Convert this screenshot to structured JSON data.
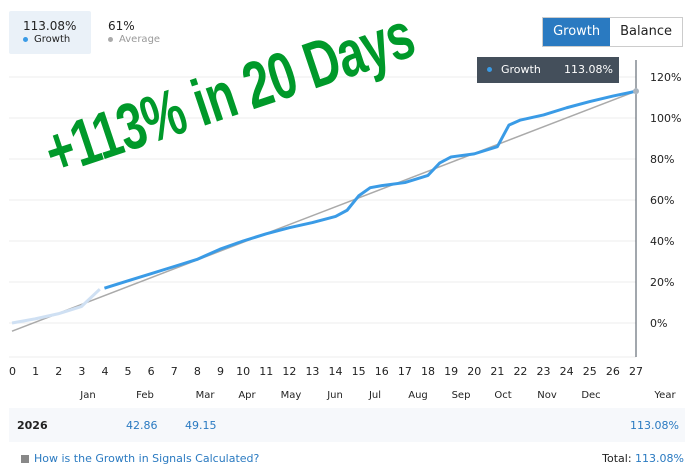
{
  "stats": [
    {
      "value": "113.08%",
      "label": "Growth",
      "color": "#3a9be6"
    },
    {
      "value": "61%",
      "label": "Average",
      "color": "#aaaaaa"
    }
  ],
  "toggle": {
    "growth": "Growth",
    "balance": "Balance"
  },
  "tooltip": {
    "label": "Growth",
    "value": "113.08%"
  },
  "overlay_text": "+113% in 20 Days",
  "chart_data": {
    "type": "line",
    "x_ticks": [
      0,
      1,
      2,
      3,
      4,
      5,
      6,
      7,
      8,
      9,
      10,
      11,
      12,
      13,
      14,
      15,
      16,
      17,
      18,
      19,
      20,
      21,
      22,
      23,
      24,
      25,
      26,
      27
    ],
    "xlim": [
      0,
      27
    ],
    "ylim": [
      -5,
      125
    ],
    "y_ticks": [
      "0%",
      "20%",
      "40%",
      "60%",
      "80%",
      "100%",
      "120%"
    ],
    "y_tick_values": [
      0,
      20,
      40,
      60,
      80,
      100,
      120
    ],
    "grid": true,
    "series": [
      {
        "name": "Growth",
        "color": "#3a9be6",
        "x": [
          4,
          5,
          6,
          7,
          8,
          9,
          10,
          11,
          12,
          13,
          14,
          14.5,
          15,
          15.5,
          16,
          17,
          18,
          18.5,
          19,
          20,
          21,
          21.5,
          22,
          23,
          24,
          25,
          26,
          27
        ],
        "y": [
          17,
          20.5,
          24,
          27.5,
          31,
          36,
          40,
          43.5,
          46.5,
          49,
          52,
          55,
          62,
          66,
          67,
          68.5,
          72,
          78,
          81,
          82.5,
          86,
          96.5,
          99,
          101.5,
          105,
          108,
          110.7,
          113.08
        ]
      },
      {
        "name": "Growth (pre-period)",
        "color": "#cfe0f3",
        "x": [
          0,
          1,
          2,
          3,
          3.8
        ],
        "y": [
          0,
          2,
          4.5,
          8,
          16.5
        ]
      },
      {
        "name": "Average",
        "color": "#aaaaaa",
        "x": [
          0,
          27
        ],
        "y": [
          -4,
          113.08
        ]
      }
    ]
  },
  "months": [
    "Jan",
    "Feb",
    "Mar",
    "Apr",
    "May",
    "Jun",
    "Jul",
    "Aug",
    "Sep",
    "Oct",
    "Nov",
    "Dec",
    "Year"
  ],
  "table": {
    "year": "2026",
    "feb": "42.86",
    "mar": "49.15",
    "total": "113.08%"
  },
  "footer": {
    "link": "How is the Growth in Signals Calculated?",
    "total_label": "Total:",
    "total_value": "113.08%"
  }
}
